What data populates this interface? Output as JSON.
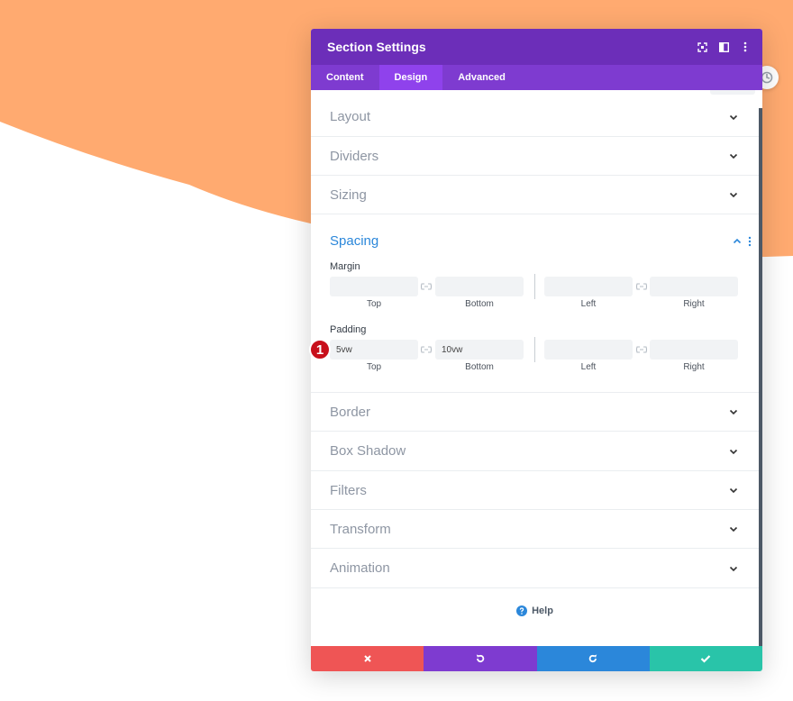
{
  "background": {
    "accent_color": "#ffaa70"
  },
  "modal": {
    "title": "Section Settings",
    "header_icons": [
      "expand-icon",
      "sidebar-layout-icon",
      "more-vertical-icon"
    ],
    "tabs": [
      {
        "label": "Content",
        "active": false
      },
      {
        "label": "Design",
        "active": true
      },
      {
        "label": "Advanced",
        "active": false
      }
    ],
    "sections_top": [
      {
        "label": "Layout"
      },
      {
        "label": "Dividers"
      },
      {
        "label": "Sizing"
      }
    ],
    "spacing": {
      "title": "Spacing",
      "margin": {
        "label": "Margin",
        "top": "",
        "bottom": "",
        "left": "",
        "right": "",
        "sublabels": [
          "Top",
          "Bottom",
          "Left",
          "Right"
        ]
      },
      "padding": {
        "label": "Padding",
        "top": "5vw",
        "bottom": "10vw",
        "left": "",
        "right": "",
        "sublabels": [
          "Top",
          "Bottom",
          "Left",
          "Right"
        ]
      }
    },
    "sections_bottom": [
      {
        "label": "Border"
      },
      {
        "label": "Box Shadow"
      },
      {
        "label": "Filters"
      },
      {
        "label": "Transform"
      },
      {
        "label": "Animation"
      }
    ],
    "help_label": "Help",
    "step_badge": "1",
    "footer": {
      "colors": {
        "cancel": "#ef5555",
        "undo": "#7e3bd0",
        "redo": "#2b87da",
        "save": "#29c4a9"
      }
    }
  }
}
